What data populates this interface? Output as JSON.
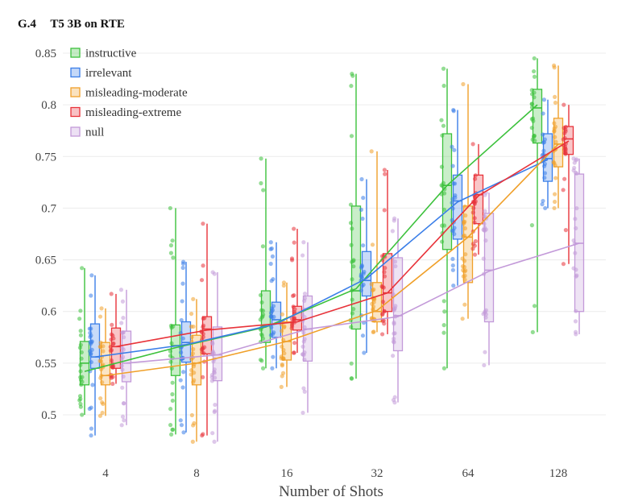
{
  "section": {
    "number": "G.4",
    "title": "T5 3B on RTE"
  },
  "chart_data": {
    "type": "box",
    "title": "",
    "xlabel": "Number of Shots",
    "ylabel": "",
    "categories": [
      "4",
      "8",
      "16",
      "32",
      "64",
      "128"
    ],
    "yticks": [
      0.5,
      0.55,
      0.6,
      0.65,
      0.7,
      0.75,
      0.8,
      0.85
    ],
    "ylim": [
      0.47,
      0.855
    ],
    "grid": true,
    "legend_position": "top-left",
    "series": [
      {
        "name": "instructive",
        "color": "#3cc13c",
        "means": [
          0.542,
          0.565,
          0.585,
          0.622,
          0.722,
          0.8
        ],
        "boxes": [
          {
            "min": 0.5,
            "q1": 0.529,
            "median": 0.55,
            "q3": 0.571,
            "max": 0.642
          },
          {
            "min": 0.481,
            "q1": 0.538,
            "median": 0.567,
            "q3": 0.587,
            "max": 0.7
          },
          {
            "min": 0.545,
            "q1": 0.57,
            "median": 0.586,
            "q3": 0.62,
            "max": 0.748
          },
          {
            "min": 0.535,
            "q1": 0.583,
            "median": 0.62,
            "q3": 0.702,
            "max": 0.83
          },
          {
            "min": 0.545,
            "q1": 0.66,
            "median": 0.722,
            "q3": 0.772,
            "max": 0.835
          },
          {
            "min": 0.58,
            "q1": 0.763,
            "median": 0.797,
            "q3": 0.815,
            "max": 0.845
          }
        ]
      },
      {
        "name": "irrelevant",
        "color": "#3a7ee8",
        "means": [
          0.556,
          0.568,
          0.588,
          0.632,
          0.706,
          0.747
        ],
        "boxes": [
          {
            "min": 0.48,
            "q1": 0.545,
            "median": 0.556,
            "q3": 0.588,
            "max": 0.635
          },
          {
            "min": 0.483,
            "q1": 0.551,
            "median": 0.57,
            "q3": 0.59,
            "max": 0.648
          },
          {
            "min": 0.545,
            "q1": 0.575,
            "median": 0.592,
            "q3": 0.609,
            "max": 0.667
          },
          {
            "min": 0.56,
            "q1": 0.615,
            "median": 0.63,
            "q3": 0.658,
            "max": 0.728
          },
          {
            "min": 0.625,
            "q1": 0.67,
            "median": 0.707,
            "q3": 0.732,
            "max": 0.795
          },
          {
            "min": 0.7,
            "q1": 0.726,
            "median": 0.748,
            "q3": 0.772,
            "max": 0.805
          }
        ]
      },
      {
        "name": "misleading-moderate",
        "color": "#f0a02a",
        "means": [
          0.538,
          0.55,
          0.571,
          0.601,
          0.672,
          0.762
        ],
        "boxes": [
          {
            "min": 0.499,
            "q1": 0.529,
            "median": 0.538,
            "q3": 0.57,
            "max": 0.603
          },
          {
            "min": 0.474,
            "q1": 0.529,
            "median": 0.55,
            "q3": 0.577,
            "max": 0.612
          },
          {
            "min": 0.527,
            "q1": 0.553,
            "median": 0.571,
            "q3": 0.59,
            "max": 0.628
          },
          {
            "min": 0.58,
            "q1": 0.59,
            "median": 0.6,
            "q3": 0.628,
            "max": 0.755
          },
          {
            "min": 0.593,
            "q1": 0.628,
            "median": 0.672,
            "q3": 0.702,
            "max": 0.82
          },
          {
            "min": 0.7,
            "q1": 0.74,
            "median": 0.762,
            "q3": 0.787,
            "max": 0.838
          }
        ]
      },
      {
        "name": "misleading-extreme",
        "color": "#e8333a",
        "means": [
          0.566,
          0.582,
          0.59,
          0.618,
          0.712,
          0.765
        ],
        "boxes": [
          {
            "min": 0.53,
            "q1": 0.545,
            "median": 0.566,
            "q3": 0.584,
            "max": 0.617
          },
          {
            "min": 0.48,
            "q1": 0.559,
            "median": 0.583,
            "q3": 0.595,
            "max": 0.685
          },
          {
            "min": 0.56,
            "q1": 0.582,
            "median": 0.592,
            "q3": 0.605,
            "max": 0.68
          },
          {
            "min": 0.578,
            "q1": 0.6,
            "median": 0.618,
            "q3": 0.656,
            "max": 0.737
          },
          {
            "min": 0.655,
            "q1": 0.685,
            "median": 0.713,
            "q3": 0.732,
            "max": 0.762
          },
          {
            "min": 0.646,
            "q1": 0.752,
            "median": 0.767,
            "q3": 0.779,
            "max": 0.8
          }
        ]
      },
      {
        "name": "null",
        "color": "#c39ad9",
        "means": [
          0.55,
          0.558,
          0.583,
          0.595,
          0.639,
          0.666
        ],
        "boxes": [
          {
            "min": 0.49,
            "q1": 0.532,
            "median": 0.55,
            "q3": 0.581,
            "max": 0.621
          },
          {
            "min": 0.474,
            "q1": 0.533,
            "median": 0.558,
            "q3": 0.585,
            "max": 0.638
          },
          {
            "min": 0.502,
            "q1": 0.552,
            "median": 0.583,
            "q3": 0.615,
            "max": 0.667
          },
          {
            "min": 0.512,
            "q1": 0.562,
            "median": 0.596,
            "q3": 0.652,
            "max": 0.69
          },
          {
            "min": 0.548,
            "q1": 0.59,
            "median": 0.64,
            "q3": 0.695,
            "max": 0.715
          },
          {
            "min": 0.578,
            "q1": 0.6,
            "median": 0.666,
            "q3": 0.733,
            "max": 0.748
          }
        ]
      }
    ]
  }
}
